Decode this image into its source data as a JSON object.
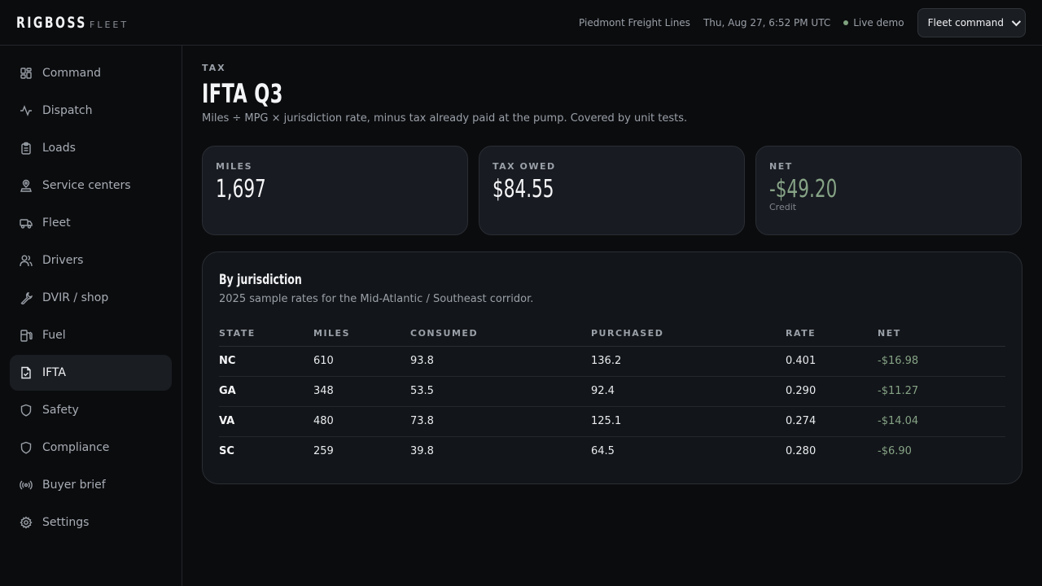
{
  "brand": {
    "name": "RIGBOSS",
    "sub": "FLEET"
  },
  "header": {
    "company": "Piedmont Freight Lines",
    "datetime": "Thu, Aug 27, 6:52 PM UTC",
    "live_label": "Live demo",
    "workspace_selected": "Fleet command"
  },
  "sidebar": {
    "items": [
      {
        "label": "Command",
        "icon": "dashboard-icon"
      },
      {
        "label": "Dispatch",
        "icon": "activity-icon"
      },
      {
        "label": "Loads",
        "icon": "clipboard-icon"
      },
      {
        "label": "Service centers",
        "icon": "map-pin-icon"
      },
      {
        "label": "Fleet",
        "icon": "truck-icon"
      },
      {
        "label": "Drivers",
        "icon": "users-icon"
      },
      {
        "label": "DVIR / shop",
        "icon": "wrench-icon"
      },
      {
        "label": "Fuel",
        "icon": "fuel-icon"
      },
      {
        "label": "IFTA",
        "icon": "file-check-icon",
        "active": true
      },
      {
        "label": "Safety",
        "icon": "shield-icon"
      },
      {
        "label": "Compliance",
        "icon": "shield-icon"
      },
      {
        "label": "Buyer brief",
        "icon": "broadcast-icon"
      },
      {
        "label": "Settings",
        "icon": "gear-icon"
      }
    ]
  },
  "page": {
    "eyebrow": "TAX",
    "title": "IFTA Q3",
    "description": "Miles ÷ MPG × jurisdiction rate, minus tax already paid at the pump. Covered by unit tests."
  },
  "stats": {
    "miles": {
      "label": "MILES",
      "value": "1,697"
    },
    "tax_owed": {
      "label": "TAX OWED",
      "value": "$84.55"
    },
    "net": {
      "label": "NET",
      "value": "-$49.20",
      "note": "Credit",
      "color": "#86a386"
    }
  },
  "jurisdiction": {
    "title": "By jurisdiction",
    "description": "2025 sample rates for the Mid-Atlantic / Southeast corridor.",
    "columns": [
      "STATE",
      "MILES",
      "CONSUMED",
      "PURCHASED",
      "RATE",
      "NET"
    ],
    "rows": [
      {
        "state": "NC",
        "miles": "610",
        "consumed": "93.8",
        "purchased": "136.2",
        "rate": "0.401",
        "net": "-$16.98"
      },
      {
        "state": "GA",
        "miles": "348",
        "consumed": "53.5",
        "purchased": "92.4",
        "rate": "0.290",
        "net": "-$11.27"
      },
      {
        "state": "VA",
        "miles": "480",
        "consumed": "73.8",
        "purchased": "125.1",
        "rate": "0.274",
        "net": "-$14.04"
      },
      {
        "state": "SC",
        "miles": "259",
        "consumed": "39.8",
        "purchased": "64.5",
        "rate": "0.280",
        "net": "-$6.90"
      }
    ]
  }
}
